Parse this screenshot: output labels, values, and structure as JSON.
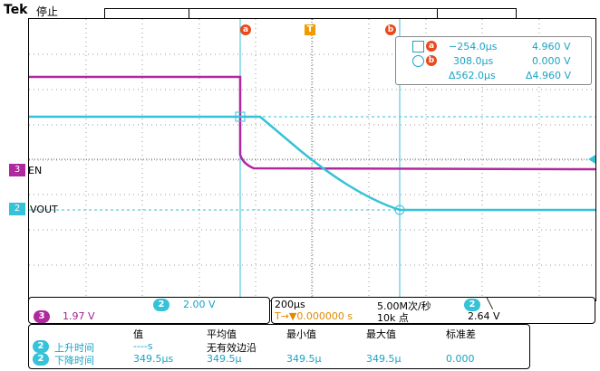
{
  "header": {
    "brand": "Tek",
    "status": "停止"
  },
  "colors": {
    "ch2": "#36c2d8",
    "ch3": "#b0289e",
    "cursor": "#e8491d",
    "trigger": "#f29b00"
  },
  "markers": {
    "cursor_a": "a",
    "cursor_b": "b",
    "trigger": "T"
  },
  "cursor_readout": {
    "a": {
      "time": "−254.0μs",
      "volt": "4.960 V"
    },
    "b": {
      "time": "308.0μs",
      "volt": "0.000 V"
    },
    "delta": {
      "time": "Δ562.0μs",
      "volt": "Δ4.960 V"
    }
  },
  "channels": {
    "en": {
      "num": "3",
      "label": "EN"
    },
    "vout": {
      "num": "2",
      "label": "VOUT"
    }
  },
  "settings": {
    "ch2_num": "2",
    "ch2_scale": "2.00 V",
    "ch3_num": "3",
    "ch3_scale": "1.97 V",
    "timebase": "200μs",
    "sample_rate": "5.00M次/秒",
    "trigger_pos": "T→▼0.000000 s",
    "record_length": "10k 点",
    "trig_ch": "2",
    "trig_slope": "╲",
    "trig_level": "2.64 V"
  },
  "stats": {
    "headers": [
      "值",
      "平均值",
      "最小值",
      "最大值",
      "标准差"
    ],
    "rows": [
      {
        "ch": "2",
        "name": "上升时间",
        "values": [
          "----s",
          "无有效边沿",
          "",
          "",
          ""
        ]
      },
      {
        "ch": "2",
        "name": "下降时间",
        "values": [
          "349.5μs",
          "349.5μ",
          "349.5μ",
          "349.5μ",
          "0.000"
        ]
      }
    ]
  }
}
